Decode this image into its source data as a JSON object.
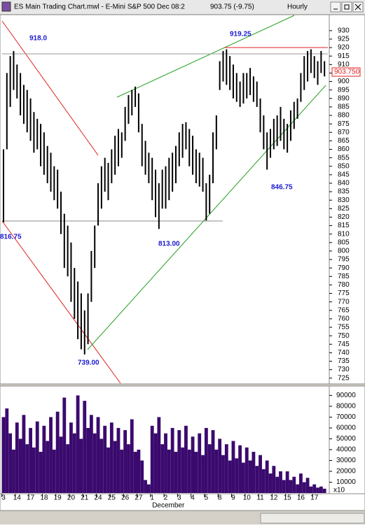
{
  "window": {
    "title": "ES Main Trading Chart.mwl - E-Mini S&P 500 Dec 08:2",
    "quote": "903.75 (-9.75)",
    "interval": "Hourly"
  },
  "chart_data": [
    {
      "type": "hilo",
      "color": "#000000",
      "low": [
        817,
        860,
        885,
        895,
        890,
        880,
        875,
        870,
        865,
        858,
        860,
        850,
        845,
        840,
        835,
        830,
        825,
        810,
        790,
        785,
        770,
        760,
        748,
        742,
        739,
        745,
        770,
        790,
        815,
        825,
        835,
        830,
        840,
        845,
        850,
        855,
        865,
        875,
        880,
        885,
        870,
        850,
        845,
        840,
        830,
        820,
        813,
        825,
        825,
        830,
        835,
        840,
        850,
        855,
        860,
        850,
        845,
        840,
        838,
        835,
        818,
        822,
        840,
        860,
        895,
        900,
        898,
        895,
        890,
        888,
        885,
        887,
        890,
        892,
        888,
        885,
        870,
        860,
        848,
        855,
        860,
        862,
        865,
        860,
        858,
        865,
        872,
        878,
        888,
        895,
        900,
        905,
        902,
        898,
        905,
        903
      ],
      "high": [
        860,
        905,
        915,
        918,
        910,
        905,
        898,
        895,
        890,
        882,
        878,
        875,
        870,
        862,
        858,
        850,
        848,
        835,
        822,
        815,
        805,
        790,
        782,
        775,
        765,
        775,
        800,
        815,
        840,
        850,
        855,
        852,
        860,
        868,
        872,
        870,
        885,
        892,
        895,
        897,
        893,
        875,
        865,
        858,
        855,
        848,
        840,
        848,
        850,
        855,
        858,
        862,
        870,
        875,
        876,
        872,
        868,
        860,
        858,
        855,
        840,
        845,
        870,
        880,
        912,
        918,
        919,
        915,
        910,
        905,
        900,
        905,
        905,
        908,
        903,
        900,
        890,
        880,
        870,
        872,
        878,
        880,
        885,
        878,
        875,
        883,
        888,
        890,
        905,
        915,
        918,
        919,
        915,
        912,
        918,
        912
      ],
      "ylim": [
        722,
        939
      ],
      "yticks": [
        930,
        925,
        920,
        915,
        910,
        905,
        900,
        895,
        890,
        885,
        880,
        875,
        870,
        865,
        860,
        855,
        850,
        845,
        840,
        835,
        830,
        825,
        820,
        815,
        810,
        805,
        800,
        795,
        790,
        785,
        780,
        775,
        770,
        765,
        760,
        755,
        750,
        745,
        740,
        735,
        730,
        725
      ],
      "price_label": "903.750",
      "annotations": [
        "918.0",
        "919.25",
        "816.75",
        "813.00",
        "739.00",
        "846.75"
      ]
    },
    {
      "type": "bar",
      "color": "#3b0a6e",
      "categories": [
        "3",
        null,
        null,
        null,
        "14",
        null,
        null,
        null,
        "17",
        null,
        null,
        null,
        "18",
        null,
        null,
        null,
        "19",
        null,
        null,
        null,
        "20",
        null,
        null,
        null,
        "21",
        null,
        null,
        null,
        "24",
        null,
        null,
        null,
        "25",
        null,
        null,
        null,
        "26",
        null,
        null,
        null,
        "27",
        null,
        null,
        null,
        "1",
        null,
        null,
        null,
        "2",
        null,
        null,
        null,
        "3",
        null,
        null,
        null,
        "4",
        null,
        null,
        null,
        "5",
        null,
        null,
        null,
        "8",
        null,
        null,
        null,
        "9",
        null,
        null,
        null,
        "10",
        null,
        null,
        null,
        "11",
        null,
        null,
        null,
        "12",
        null,
        null,
        null,
        "15",
        null,
        null,
        null,
        "16",
        null,
        null,
        null,
        "17",
        null,
        null,
        null
      ],
      "values": [
        70000,
        78000,
        55000,
        40000,
        65000,
        50000,
        72000,
        45000,
        60000,
        42000,
        66000,
        38000,
        62000,
        48000,
        70000,
        40000,
        75000,
        52000,
        88000,
        45000,
        65000,
        55000,
        90000,
        50000,
        85000,
        60000,
        72000,
        55000,
        70000,
        50000,
        62000,
        42000,
        65000,
        48000,
        60000,
        40000,
        58000,
        45000,
        68000,
        38000,
        40000,
        30000,
        12000,
        8000,
        62000,
        55000,
        70000,
        45000,
        55000,
        40000,
        60000,
        38000,
        58000,
        42000,
        62000,
        40000,
        52000,
        38000,
        55000,
        35000,
        60000,
        45000,
        58000,
        40000,
        50000,
        35000,
        45000,
        30000,
        48000,
        32000,
        44000,
        28000,
        42000,
        30000,
        38000,
        25000,
        35000,
        22000,
        30000,
        18000,
        25000,
        15000,
        20000,
        12000,
        20000,
        12000,
        15000,
        8000,
        18000,
        10000,
        14000,
        6000,
        8000,
        5000,
        6000,
        4000
      ],
      "ylim": [
        0,
        98000
      ],
      "yticks": [
        90000,
        80000,
        70000,
        60000,
        50000,
        40000,
        30000,
        20000,
        10000
      ],
      "x_label": "December",
      "scale_note": "x10"
    }
  ]
}
